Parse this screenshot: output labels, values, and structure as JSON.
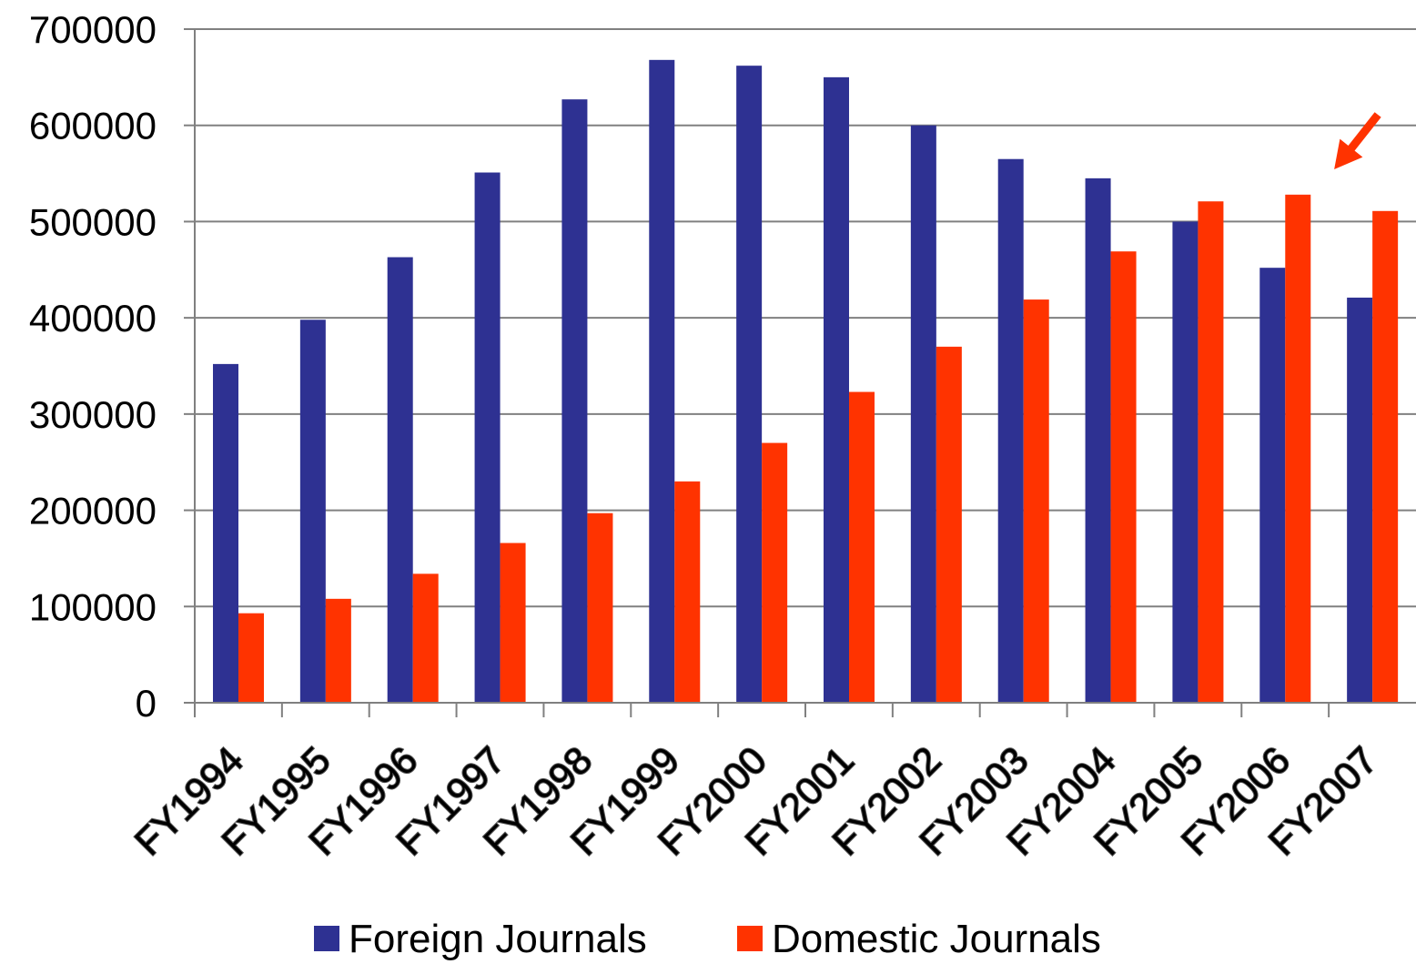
{
  "chart_data": {
    "type": "bar",
    "categories": [
      "FY1994",
      "FY1995",
      "FY1996",
      "FY1997",
      "FY1998",
      "FY1999",
      "FY2000",
      "FY2001",
      "FY2002",
      "FY2003",
      "FY2004",
      "FY2005",
      "FY2006",
      "FY2007"
    ],
    "series": [
      {
        "name": "Foreign Journals",
        "color": "#2e3192",
        "values": [
          352000,
          398000,
          463000,
          551000,
          627000,
          668000,
          662000,
          650000,
          600000,
          565000,
          545000,
          500000,
          452000,
          421000
        ]
      },
      {
        "name": "Domestic Journals",
        "color": "#ff3300",
        "values": [
          93000,
          108000,
          134000,
          166000,
          197000,
          230000,
          270000,
          323000,
          370000,
          419000,
          469000,
          521000,
          528000,
          511000
        ]
      }
    ],
    "title": "",
    "xlabel": "",
    "ylabel": "",
    "ylim": [
      0,
      700000
    ],
    "yticks": [
      "0",
      "100000",
      "200000",
      "300000",
      "400000",
      "500000",
      "600000",
      "700000"
    ],
    "grid": true,
    "legend_position": "bottom",
    "annotation": {
      "type": "arrow",
      "category": "FY2006",
      "color": "#ff3300"
    }
  }
}
